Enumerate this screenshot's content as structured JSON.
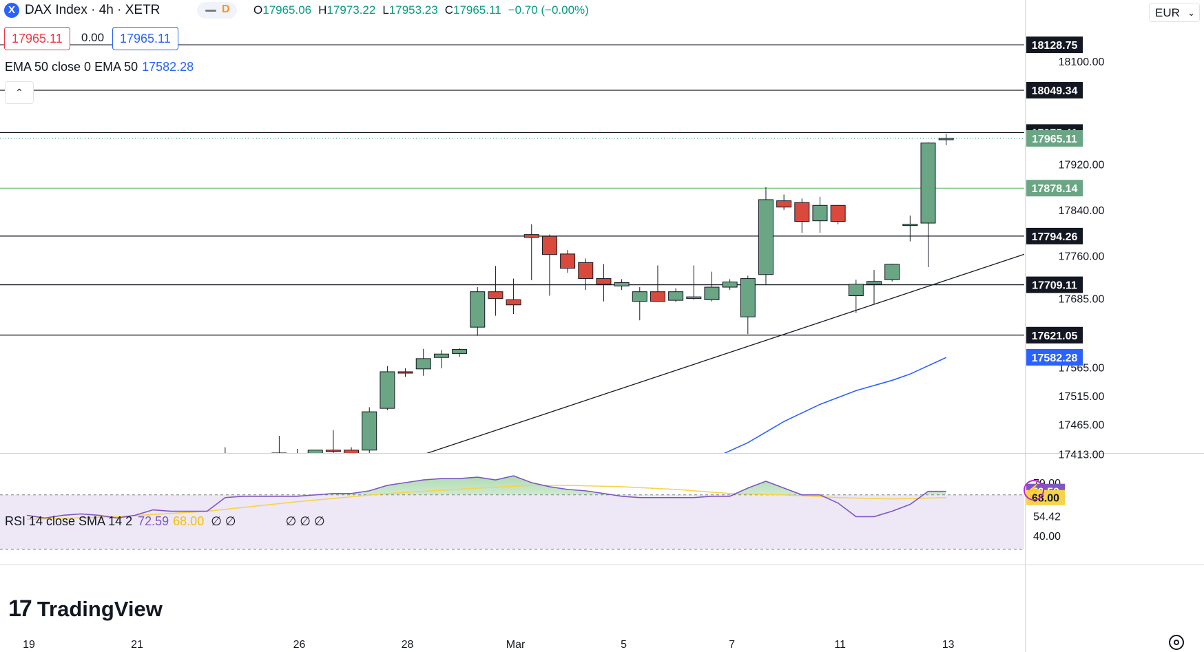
{
  "header": {
    "symbol": "DAX Index · 4h · XETR",
    "symbol_icon_letter": "X",
    "pill_letter": "D",
    "ohlc": {
      "o_key": "O",
      "o_val": "17965.06",
      "h_key": "H",
      "h_val": "17973.22",
      "l_key": "L",
      "l_val": "17953.23",
      "c_key": "C",
      "c_val": "17965.11",
      "change": "−0.70 (−0.00%)"
    },
    "bid": "17965.11",
    "spread": "0.00",
    "ask": "17965.11",
    "currency": "EUR"
  },
  "ema_legend": {
    "label": "EMA 50 close 0 EMA 50",
    "value": "17582.28"
  },
  "rsi_legend": {
    "label": "RSI 14 close SMA 14 2",
    "rsi_value": "72.59",
    "sma_value": "68.00",
    "nulls_a": "∅ ∅",
    "nulls_b": "∅ ∅ ∅"
  },
  "branding": {
    "mark": "17",
    "word": "TradingView"
  },
  "colors": {
    "up": "#6aa584",
    "down": "#d94a3d",
    "ema": "#2962ff",
    "rsi": "#7e57c2",
    "rsi_sma": "#f6d34a",
    "green_level": "#4caf50",
    "rsi_band": "#ede7f6"
  },
  "chart_data": [
    {
      "type": "candlestick",
      "title": "DAX Index · 4h · XETR",
      "y_axis_ticks": [
        18100.0,
        17920.0,
        17840.0,
        17760.0,
        17685.0,
        17565.0,
        17515.0,
        17465.0,
        17413.0
      ],
      "x_axis_labels": [
        "19",
        "21",
        "26",
        "28",
        "Mar",
        "5",
        "7",
        "11",
        "13"
      ],
      "x_axis_label_index": [
        0,
        6,
        15,
        21,
        27,
        33,
        39,
        45,
        51
      ],
      "price_labels": [
        {
          "value": "18128.75",
          "style": "dark"
        },
        {
          "value": "18049.34",
          "style": "dark"
        },
        {
          "value": "17975.41",
          "style": "dark"
        },
        {
          "value": "17965.11",
          "style": "last"
        },
        {
          "value": "17878.14",
          "style": "green"
        },
        {
          "value": "17794.26",
          "style": "dark"
        },
        {
          "value": "17709.11",
          "style": "dark"
        },
        {
          "value": "17621.05",
          "style": "dark"
        },
        {
          "value": "17582.28",
          "style": "ema"
        }
      ],
      "horizontal_levels": [
        18128.75,
        18049.34,
        17975.41,
        17878.14,
        17794.26,
        17709.11,
        17621.05
      ],
      "trendline": {
        "from": {
          "i": 21.3,
          "price": 17405.0
        },
        "to": {
          "i": 57.0,
          "price": 17780.0
        }
      },
      "candles": [
        {
          "i": 11,
          "o": 17380.0,
          "h": 17425.0,
          "l": 17360.0,
          "c": 17370.0
        },
        {
          "i": 14,
          "o": 17395.0,
          "h": 17445.0,
          "l": 17385.0,
          "c": 17415.0
        },
        {
          "i": 15,
          "o": 17412.0,
          "h": 17422.0,
          "l": 17405.0,
          "c": 17414.0
        },
        {
          "i": 16,
          "o": 17390.0,
          "h": 17420.0,
          "l": 17370.0,
          "c": 17420.0
        },
        {
          "i": 17,
          "o": 17420.0,
          "h": 17455.0,
          "l": 17400.0,
          "c": 17418.0
        },
        {
          "i": 18,
          "o": 17420.0,
          "h": 17425.0,
          "l": 17405.0,
          "c": 17412.0
        },
        {
          "i": 19,
          "o": 17420.0,
          "h": 17495.0,
          "l": 17415.0,
          "c": 17487.0
        },
        {
          "i": 20,
          "o": 17493.0,
          "h": 17567.0,
          "l": 17490.0,
          "c": 17557.0
        },
        {
          "i": 21,
          "o": 17557.0,
          "h": 17563.0,
          "l": 17548.0,
          "c": 17555.0
        },
        {
          "i": 22,
          "o": 17562.0,
          "h": 17597.0,
          "l": 17550.0,
          "c": 17580.0
        },
        {
          "i": 23,
          "o": 17582.0,
          "h": 17595.0,
          "l": 17563.0,
          "c": 17588.0
        },
        {
          "i": 24,
          "o": 17589.0,
          "h": 17598.0,
          "l": 17583.0,
          "c": 17596.0
        },
        {
          "i": 25,
          "o": 17635.0,
          "h": 17705.0,
          "l": 17620.0,
          "c": 17697.0
        },
        {
          "i": 26,
          "o": 17697.0,
          "h": 17742.0,
          "l": 17655.0,
          "c": 17685.0
        },
        {
          "i": 27,
          "o": 17683.0,
          "h": 17720.0,
          "l": 17658.0,
          "c": 17674.0
        },
        {
          "i": 28,
          "o": 17797.0,
          "h": 17815.0,
          "l": 17717.0,
          "c": 17792.0
        },
        {
          "i": 29,
          "o": 17794.0,
          "h": 17797.0,
          "l": 17690.0,
          "c": 17762.0
        },
        {
          "i": 30,
          "o": 17763.0,
          "h": 17770.0,
          "l": 17730.0,
          "c": 17738.0
        },
        {
          "i": 31,
          "o": 17748.0,
          "h": 17755.0,
          "l": 17700.0,
          "c": 17720.0
        },
        {
          "i": 32,
          "o": 17720.0,
          "h": 17745.0,
          "l": 17680.0,
          "c": 17710.0
        },
        {
          "i": 33,
          "o": 17707.0,
          "h": 17719.0,
          "l": 17700.0,
          "c": 17713.0
        },
        {
          "i": 34,
          "o": 17680.0,
          "h": 17705.0,
          "l": 17647.0,
          "c": 17697.0
        },
        {
          "i": 35,
          "o": 17697.0,
          "h": 17743.0,
          "l": 17680.0,
          "c": 17680.0
        },
        {
          "i": 36,
          "o": 17682.0,
          "h": 17703.0,
          "l": 17679.0,
          "c": 17697.0
        },
        {
          "i": 37,
          "o": 17685.0,
          "h": 17743.0,
          "l": 17683.0,
          "c": 17688.0
        },
        {
          "i": 38,
          "o": 17683.0,
          "h": 17732.0,
          "l": 17680.0,
          "c": 17705.0
        },
        {
          "i": 39,
          "o": 17705.0,
          "h": 17719.0,
          "l": 17700.0,
          "c": 17714.0
        },
        {
          "i": 40,
          "o": 17653.0,
          "h": 17725.0,
          "l": 17623.0,
          "c": 17720.0
        },
        {
          "i": 41,
          "o": 17727.0,
          "h": 17880.0,
          "l": 17710.0,
          "c": 17858.0
        },
        {
          "i": 42,
          "o": 17856.0,
          "h": 17867.0,
          "l": 17840.0,
          "c": 17845.0
        },
        {
          "i": 43,
          "o": 17853.0,
          "h": 17860.0,
          "l": 17800.0,
          "c": 17820.0
        },
        {
          "i": 44,
          "o": 17821.0,
          "h": 17863.0,
          "l": 17800.0,
          "c": 17848.0
        },
        {
          "i": 45,
          "o": 17848.0,
          "h": 17848.0,
          "l": 17815.0,
          "c": 17820.0
        },
        {
          "i": 46,
          "o": 17690.0,
          "h": 17718.0,
          "l": 17660.0,
          "c": 17710.0
        },
        {
          "i": 47,
          "o": 17710.0,
          "h": 17735.0,
          "l": 17675.0,
          "c": 17715.0
        },
        {
          "i": 48,
          "o": 17718.0,
          "h": 17746.0,
          "l": 17715.0,
          "c": 17745.0
        },
        {
          "i": 49,
          "o": 17815.0,
          "h": 17830.0,
          "l": 17785.0,
          "c": 17815.0
        },
        {
          "i": 50,
          "o": 17817.0,
          "h": 17958.0,
          "l": 17740.0,
          "c": 17957.0
        },
        {
          "i": 51,
          "o": 17965.06,
          "h": 17973.22,
          "l": 17953.23,
          "c": 17965.11
        }
      ],
      "ema": [
        {
          "i": 36.5,
          "price": 17383.0
        },
        {
          "i": 40.0,
          "price": 17433.0
        },
        {
          "i": 42.0,
          "price": 17470.0
        },
        {
          "i": 44.0,
          "price": 17500.0
        },
        {
          "i": 46.0,
          "price": 17524.0
        },
        {
          "i": 48.0,
          "price": 17542.0
        },
        {
          "i": 49.0,
          "price": 17553.0
        },
        {
          "i": 51.0,
          "price": 17582.0
        }
      ]
    },
    {
      "type": "line",
      "title": "RSI 14 close SMA 14 2",
      "y_axis_ticks": [
        79.0,
        54.42,
        40.0
      ],
      "price_labels": [
        {
          "value": "72.59",
          "style": "rsi"
        },
        {
          "value": "68.00",
          "style": "sma"
        }
      ],
      "band": [
        70,
        30
      ],
      "series": [
        {
          "name": "RSI",
          "points": [
            [
              0,
              55
            ],
            [
              1,
              53
            ],
            [
              2,
              55
            ],
            [
              3,
              56
            ],
            [
              4,
              55
            ],
            [
              5,
              53
            ],
            [
              6,
              55
            ],
            [
              7,
              59
            ],
            [
              8,
              58
            ],
            [
              9,
              58
            ],
            [
              10,
              58
            ],
            [
              11,
              68
            ],
            [
              12,
              69
            ],
            [
              13,
              69
            ],
            [
              14,
              69
            ],
            [
              15,
              69
            ],
            [
              16,
              70
            ],
            [
              17,
              71
            ],
            [
              18,
              71
            ],
            [
              19,
              73
            ],
            [
              20,
              77
            ],
            [
              21,
              79
            ],
            [
              22,
              81
            ],
            [
              23,
              82
            ],
            [
              24,
              82
            ],
            [
              25,
              83
            ],
            [
              26,
              81
            ],
            [
              27,
              84
            ],
            [
              28,
              79
            ],
            [
              29,
              76
            ],
            [
              30,
              74
            ],
            [
              31,
              73
            ],
            [
              32,
              71
            ],
            [
              33,
              69
            ],
            [
              34,
              68
            ],
            [
              35,
              68
            ],
            [
              36,
              68
            ],
            [
              37,
              68
            ],
            [
              38,
              69
            ],
            [
              39,
              69
            ],
            [
              40,
              75
            ],
            [
              41,
              80
            ],
            [
              42,
              75
            ],
            [
              43,
              70
            ],
            [
              44,
              70
            ],
            [
              45,
              64
            ],
            [
              46,
              54
            ],
            [
              47,
              54
            ],
            [
              48,
              58
            ],
            [
              49,
              63
            ],
            [
              50,
              72.59
            ],
            [
              51,
              72.59
            ]
          ]
        },
        {
          "name": "SMA",
          "points": [
            [
              0,
              52
            ],
            [
              5,
              54
            ],
            [
              10,
              58
            ],
            [
              15,
              65
            ],
            [
              20,
              71
            ],
            [
              25,
              75
            ],
            [
              28,
              77
            ],
            [
              30,
              77
            ],
            [
              33,
              76
            ],
            [
              36,
              74
            ],
            [
              39,
              71
            ],
            [
              42,
              70
            ],
            [
              45,
              68
            ],
            [
              48,
              67
            ],
            [
              51,
              68
            ]
          ]
        }
      ]
    }
  ]
}
